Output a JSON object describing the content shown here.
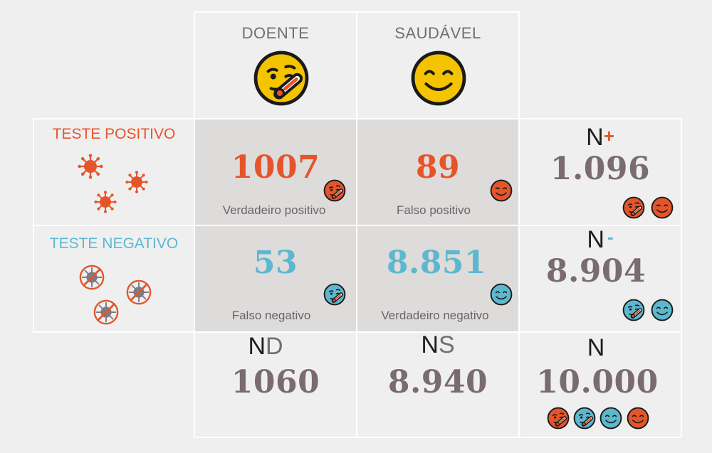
{
  "columns": {
    "sick": {
      "label": "DOENTE",
      "icon": "sick-thermometer-face-icon"
    },
    "healthy": {
      "label": "SAUDÁVEL",
      "icon": "smiling-face-icon"
    }
  },
  "rows": {
    "positive": {
      "label": "TESTE POSITIVO",
      "icon": "virus-icon"
    },
    "negative": {
      "label": "TESTE NEGATIVO",
      "icon": "crossed-out-virus-icon"
    }
  },
  "cells": {
    "true_positive": {
      "value": "1007",
      "label": "Verdadeiro positivo"
    },
    "false_positive": {
      "value": "89",
      "label": "Falso positivo"
    },
    "false_negative": {
      "value": "53",
      "label": "Falso negativo"
    },
    "true_negative": {
      "value": "8.851",
      "label": "Verdadeiro negativo"
    }
  },
  "totals": {
    "n_plus": {
      "letter": "N",
      "sign": "+",
      "value": "1.096"
    },
    "n_minus": {
      "letter": "N",
      "sign": "-",
      "value": "8.904"
    },
    "n_d": {
      "letter": "N",
      "sub": "D",
      "value": "1060"
    },
    "n_s": {
      "letter": "N",
      "sub": "S",
      "value": "8.940"
    },
    "n": {
      "letter": "N",
      "value": "10.000"
    }
  },
  "colors": {
    "orange": "#e5552a",
    "blue": "#5cb8cf",
    "yellow": "#f5c400",
    "mauve": "#7a6b72",
    "gray_text": "#756c6f"
  }
}
